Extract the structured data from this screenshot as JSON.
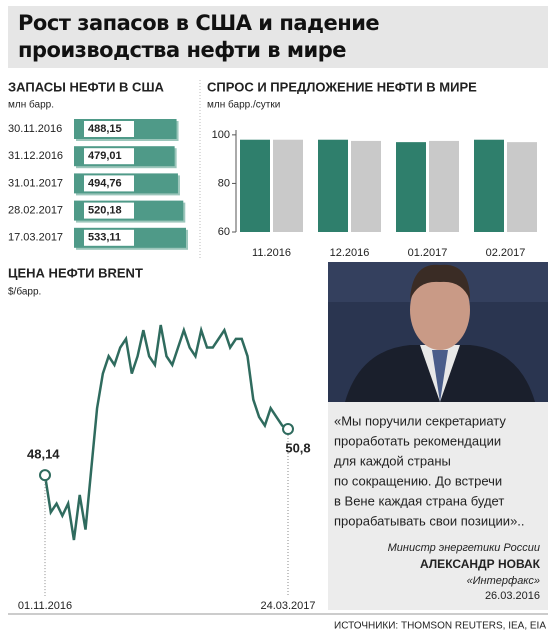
{
  "title": "Рост запасов в США и падение производства нефти в мире",
  "chart_data": [
    {
      "type": "barh",
      "title": "ЗАПАСЫ НЕФТИ В США",
      "subtitle": "млн барр.",
      "categories": [
        "30.11.2016",
        "31.12.2016",
        "31.01.2017",
        "28.02.2017",
        "17.03.2017"
      ],
      "values": [
        488.15,
        479.01,
        494.76,
        520.18,
        533.11
      ],
      "value_labels": [
        "488,15",
        "479,01",
        "494,76",
        "520,18",
        "533,11"
      ],
      "color": "#4f9a88"
    },
    {
      "type": "bar",
      "title": "СПРОС И ПРЕДЛОЖЕНИЕ НЕФТИ В МИРЕ",
      "subtitle": "млн барр./сутки",
      "categories": [
        "11.2016",
        "12.2016",
        "01.2017",
        "02.2017"
      ],
      "series": [
        {
          "color": "#2f7f6c",
          "values": [
            98,
            98,
            97,
            98
          ]
        },
        {
          "color": "#c9c9c9",
          "values": [
            98,
            97.5,
            97.5,
            97
          ]
        }
      ],
      "ylim": [
        60,
        102
      ],
      "yticks": [
        60,
        80,
        100
      ]
    },
    {
      "type": "line",
      "title": "ЦЕНА НЕФТИ BRENT",
      "subtitle": "$/барр.",
      "categories": [
        "01.11.2016",
        null,
        null,
        null,
        null,
        null,
        null,
        null,
        null,
        null,
        null,
        null,
        null,
        null,
        null,
        null,
        null,
        null,
        null,
        null,
        null,
        null,
        null,
        null,
        null,
        null,
        null,
        null,
        null,
        null,
        null,
        null,
        null,
        null,
        null,
        null,
        null,
        null,
        null,
        null,
        null,
        null,
        "24.03.2017"
      ],
      "values": [
        48.14,
        46,
        46.5,
        45.8,
        46.5,
        44.4,
        47,
        45,
        48.5,
        52,
        54,
        55,
        54.5,
        55.5,
        56,
        54,
        55,
        56.5,
        55,
        54.5,
        56.8,
        55,
        54.5,
        55.5,
        56.5,
        55.5,
        55,
        56.5,
        55.5,
        55.5,
        56,
        56.5,
        55.5,
        56,
        56,
        55,
        52.5,
        51.5,
        51,
        52,
        51.5,
        51,
        50.8
      ],
      "value_labels": [
        "48,14",
        null,
        null,
        null,
        null,
        null,
        null,
        null,
        null,
        null,
        null,
        null,
        null,
        null,
        null,
        null,
        null,
        null,
        null,
        null,
        null,
        null,
        null,
        null,
        null,
        null,
        null,
        null,
        null,
        null,
        null,
        null,
        null,
        null,
        null,
        null,
        null,
        null,
        null,
        null,
        null,
        null,
        "50,8"
      ],
      "color": "#2f6b5e"
    }
  ],
  "quote": {
    "lines": [
      "«Мы поручили секретариату",
      "проработать рекомендации",
      "для каждой страны",
      "по сокращению. До встречи",
      "в Вене каждая страна будет",
      "прорабатывать свои позиции».."
    ],
    "position": "Министр энергетики России",
    "name": "АЛЕКСАНДР НОВАК",
    "agency": "«Интерфакс»",
    "date": "26.03.2016"
  },
  "source": "ИСТОЧНИКИ: THOMSON REUTERS, IEA, EIA"
}
